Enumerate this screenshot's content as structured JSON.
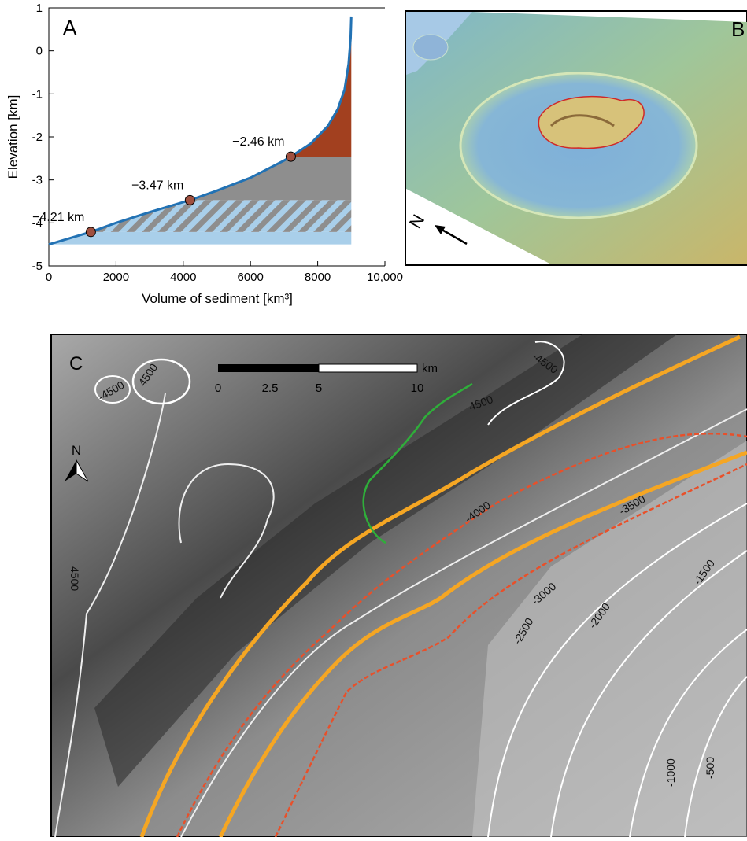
{
  "chart_data": {
    "type": "line",
    "panel_label": "A",
    "xlabel": "Volume of sediment [km³]",
    "ylabel": "Elevation [km]",
    "x": [
      0,
      1250,
      2000,
      3000,
      4200,
      5000,
      6000,
      7000,
      7200,
      7800,
      8300,
      8600,
      8800,
      8920,
      8980,
      9000
    ],
    "values": [
      -4.5,
      -4.21,
      -4.0,
      -3.75,
      -3.47,
      -3.25,
      -2.95,
      -2.55,
      -2.46,
      -2.15,
      -1.75,
      -1.35,
      -0.9,
      -0.3,
      0.3,
      0.8
    ],
    "color": "#2272b4",
    "points": {
      "x": [
        1250,
        4200,
        7200
      ],
      "values": [
        -4.21,
        -3.47,
        -2.46
      ],
      "value_labels": [
        "−4.21 km",
        "−3.47 km",
        "−2.46 km"
      ],
      "color": "#a0503f"
    },
    "fill_colors": [
      "#a9cfea",
      "#8e8e8e",
      "#a2401f"
    ],
    "xlim": [
      0,
      10000
    ],
    "xticks": [
      0,
      2000,
      4000,
      6000,
      8000,
      {
        "value": 10000,
        "label": "10,000"
      }
    ],
    "ylim": [
      -5,
      1
    ],
    "yticks": [
      1,
      0,
      -1,
      -2,
      -3,
      -4,
      -5
    ]
  },
  "panel_b": {
    "label": "B",
    "north": "N"
  },
  "panel_c": {
    "label": "C",
    "north": "N",
    "scale_labels": [
      "0",
      "2.5",
      "5",
      "10"
    ],
    "scale_unit": "km",
    "contour_labels": [
      "-4500",
      "4500",
      "-4500",
      "4500",
      "4500",
      "-4000",
      "-3500",
      "-3000",
      "-2500",
      "-2000",
      "-1500",
      "-1000",
      "-500"
    ]
  }
}
